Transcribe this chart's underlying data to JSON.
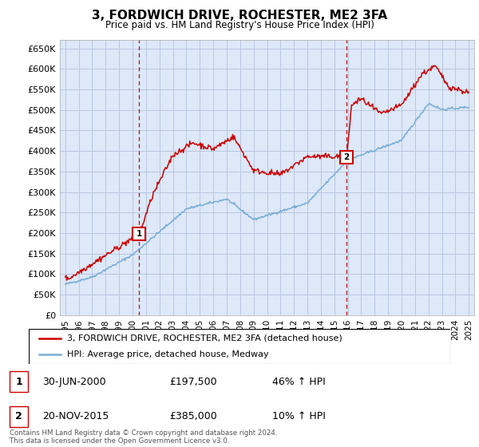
{
  "title": "3, FORDWICH DRIVE, ROCHESTER, ME2 3FA",
  "subtitle": "Price paid vs. HM Land Registry's House Price Index (HPI)",
  "ylim": [
    0,
    670000
  ],
  "yticks": [
    0,
    50000,
    100000,
    150000,
    200000,
    250000,
    300000,
    350000,
    400000,
    450000,
    500000,
    550000,
    600000,
    650000
  ],
  "ytick_labels": [
    "£0",
    "£50K",
    "£100K",
    "£150K",
    "£200K",
    "£250K",
    "£300K",
    "£350K",
    "£400K",
    "£450K",
    "£500K",
    "£550K",
    "£600K",
    "£650K"
  ],
  "plot_bg_color": "#dde8f8",
  "grid_color": "#b8c8e0",
  "red_line_color": "#cc0000",
  "blue_line_color": "#7aadd4",
  "vline_color": "#cc0000",
  "marker1_x": 2000.5,
  "marker1_y": 197500,
  "marker2_x": 2015.9,
  "marker2_y": 385000,
  "annotation1": {
    "label": "1",
    "date": "30-JUN-2000",
    "price": "£197,500",
    "pct": "46% ↑ HPI"
  },
  "annotation2": {
    "label": "2",
    "date": "20-NOV-2015",
    "price": "£385,000",
    "pct": "10% ↑ HPI"
  },
  "legend_line1": "3, FORDWICH DRIVE, ROCHESTER, ME2 3FA (detached house)",
  "legend_line2": "HPI: Average price, detached house, Medway",
  "footer": "Contains HM Land Registry data © Crown copyright and database right 2024.\nThis data is licensed under the Open Government Licence v3.0.",
  "xmin": 1994.6,
  "xmax": 2025.4,
  "xticks": [
    1995,
    1996,
    1997,
    1998,
    1999,
    2000,
    2001,
    2002,
    2003,
    2004,
    2005,
    2006,
    2007,
    2008,
    2009,
    2010,
    2011,
    2012,
    2013,
    2014,
    2015,
    2016,
    2017,
    2018,
    2019,
    2020,
    2021,
    2022,
    2023,
    2024,
    2025
  ]
}
